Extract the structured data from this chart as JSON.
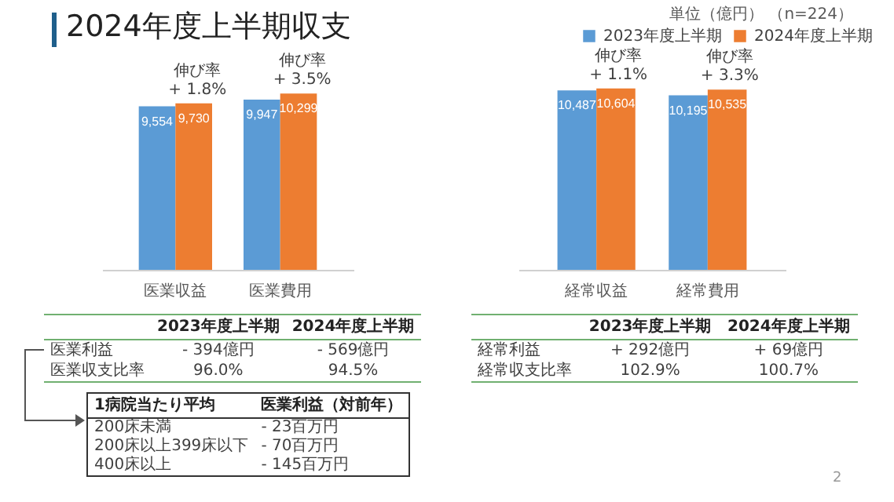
{
  "chart_data": [
    {
      "type": "bar",
      "title": "2024年度上半期収支",
      "categories": [
        "医業収益",
        "医業費用"
      ],
      "series": [
        {
          "color": "#5b9bd5",
          "values": [
            9554,
            9947
          ],
          "value_labels": [
            "9,554",
            "9,947"
          ]
        },
        {
          "color": "#ed7d31",
          "values": [
            9730,
            10299
          ],
          "value_labels": [
            "9,730",
            "10,299"
          ]
        }
      ],
      "tick_labels": "x",
      "annotations": [
        {
          "text": "伸び率\n+ 1.8%",
          "x": "医業収益",
          "y": 9730
        },
        {
          "text": "伸び率\n+ 3.5%",
          "x": "医業費用",
          "y": 10299
        },
        "2023年度上半期",
        "2024年度上半期",
        "医業利益",
        "- 394億円",
        "- 569億円",
        "医業収支比率",
        "96.0%",
        "94.5%",
        "1病院当たり平均",
        "医業利益（対前年）",
        "200床未満",
        "- 23百万円",
        "200床以上399床以下",
        "- 70百万円",
        "400床以上",
        "- 145百万円"
      ]
    },
    {
      "type": "bar",
      "subtitle": "単位（億円） （n=224）",
      "categories": [
        "経常収益",
        "経常費用"
      ],
      "series": [
        {
          "name": "2023年度上半期",
          "color": "#5b9bd5",
          "values": [
            10487,
            10195
          ],
          "value_labels": [
            "10,487",
            "10,195"
          ]
        },
        {
          "name": "2024年度上半期",
          "color": "#ed7d31",
          "values": [
            10604,
            10535
          ],
          "value_labels": [
            "10,604",
            "10,535"
          ]
        }
      ],
      "tick_labels": "x",
      "legend": "top right",
      "annotations": [
        {
          "text": "伸び率\n+ 1.1%",
          "x": "経常収益",
          "y": 10604
        },
        {
          "text": "伸び率\n+ 3.3%",
          "x": "経常費用",
          "y": 10535
        },
        "2023年度上半期",
        "2024年度上半期",
        "経常利益",
        "+ 292億円",
        "+ 69億円",
        "経常収支比率",
        "102.9%",
        "100.7%",
        "2"
      ]
    }
  ]
}
